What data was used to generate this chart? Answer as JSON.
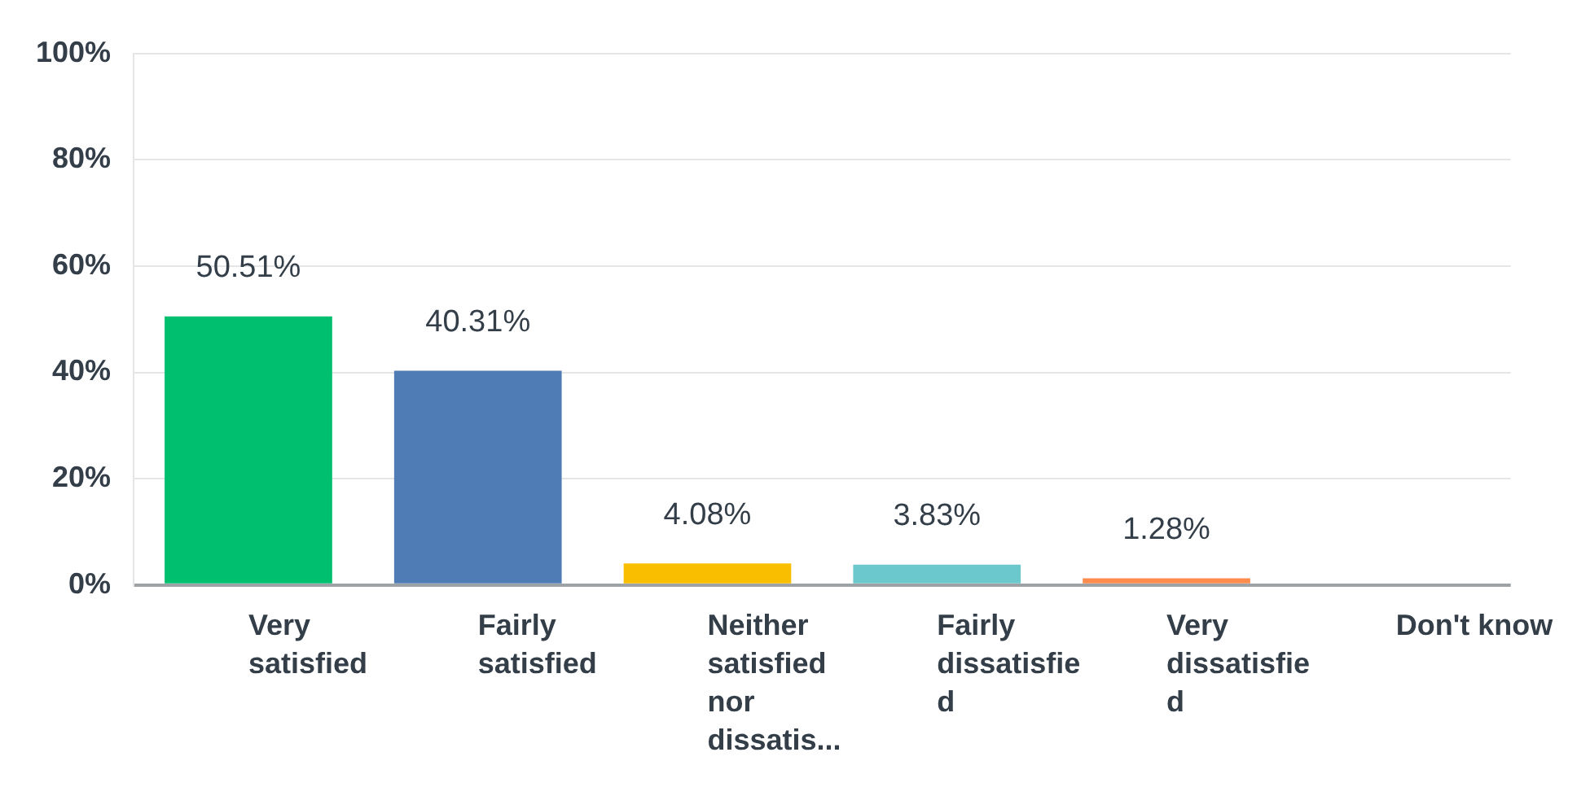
{
  "chart_data": {
    "type": "bar",
    "categories": [
      "Very satisfied",
      "Fairly satisfied",
      "Neither satisfied nor dissatis...",
      "Fairly dissatisfied",
      "Very dissatisfied",
      "Don't know"
    ],
    "values": [
      50.51,
      40.31,
      4.08,
      3.83,
      1.28,
      0
    ],
    "colors": [
      "#00bf6f",
      "#507cb6",
      "#f9be00",
      "#6bc8cd",
      "#ff8b4f",
      "#c0c0c0"
    ],
    "value_labels": [
      "50.51%",
      "40.31%",
      "4.08%",
      "3.83%",
      "1.28%",
      null
    ],
    "ylim": [
      0,
      100
    ],
    "yticks": [
      {
        "value": 0,
        "label": "0%"
      },
      {
        "value": 20,
        "label": "20%"
      },
      {
        "value": 40,
        "label": "40%"
      },
      {
        "value": 60,
        "label": "60%"
      },
      {
        "value": 80,
        "label": "80%"
      },
      {
        "value": 100,
        "label": "100%"
      }
    ],
    "grid": "y",
    "legend": false
  }
}
